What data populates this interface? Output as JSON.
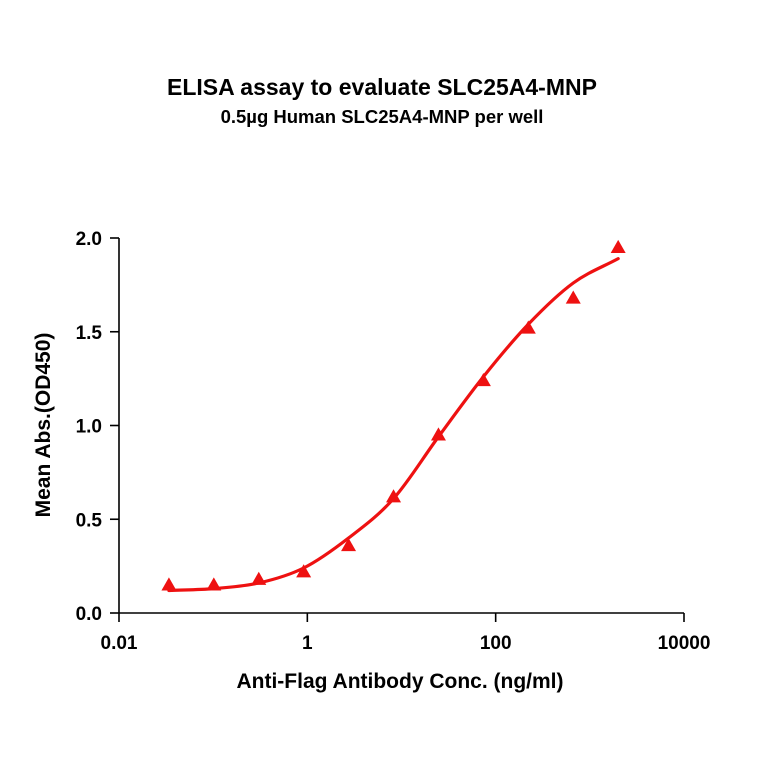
{
  "chart_data": {
    "type": "scatter",
    "title": "ELISA assay to evaluate SLC25A4-MNP",
    "subtitle": "0.5µg Human SLC25A4-MNP per well",
    "xlabel": "Anti-Flag Antibody Conc. (ng/ml)",
    "ylabel": "Mean Abs.(OD450)",
    "xscale": "log",
    "xlim": [
      0.01,
      10000
    ],
    "ylim": [
      0.0,
      2.0
    ],
    "x_ticks": [
      "0.01",
      "1",
      "100",
      "10000"
    ],
    "y_ticks": [
      "0.0",
      "0.5",
      "1.0",
      "1.5",
      "2.0"
    ],
    "grid": false,
    "legend": null,
    "marker": "triangle",
    "color": "#ee1111",
    "series": [
      {
        "name": "SLC25A4-MNP",
        "x": [
          0.0339,
          0.1016,
          0.305,
          0.914,
          2.74,
          8.23,
          24.69,
          74.07,
          222.2,
          666.7,
          2000
        ],
        "y": [
          0.15,
          0.15,
          0.18,
          0.22,
          0.36,
          0.62,
          0.95,
          1.24,
          1.52,
          1.68,
          1.95
        ]
      }
    ],
    "fit_curve": {
      "type": "4PL sigmoid",
      "x": [
        0.0339,
        0.1016,
        0.305,
        0.914,
        2.74,
        8.23,
        24.69,
        74.07,
        222.2,
        666.7,
        2000
      ],
      "y": [
        0.12,
        0.13,
        0.16,
        0.24,
        0.4,
        0.61,
        0.94,
        1.26,
        1.54,
        1.76,
        1.89
      ]
    }
  }
}
